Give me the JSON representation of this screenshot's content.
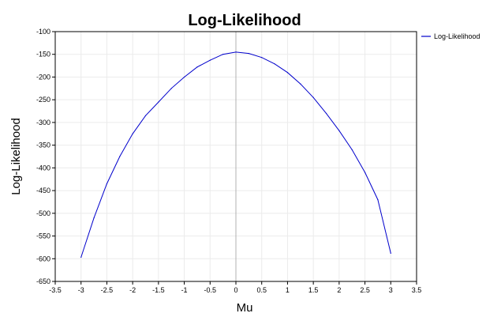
{
  "chart_data": {
    "type": "line",
    "title": "Log-Likelihood",
    "xlabel": "Mu",
    "ylabel": "Log-Likelihood",
    "xlim": [
      -3.5,
      3.5
    ],
    "ylim": [
      -650,
      -100
    ],
    "xticks": [
      "-3.5",
      "-3",
      "-2.5",
      "-2",
      "-1.5",
      "-1",
      "-0.5",
      "0",
      "0.5",
      "1",
      "1.5",
      "2",
      "2.5",
      "3",
      "3.5"
    ],
    "yticks": [
      "-100",
      "-150",
      "-200",
      "-250",
      "-300",
      "-350",
      "-400",
      "-450",
      "-500",
      "-550",
      "-600",
      "-650"
    ],
    "grid": true,
    "legend_position": "top-right",
    "vertical_marker_x": 0,
    "series": [
      {
        "name": "Log-Likelihood",
        "color": "#0000cc",
        "x": [
          -3,
          -2.75,
          -2.5,
          -2.25,
          -2,
          -1.75,
          -1.5,
          -1.25,
          -1,
          -0.75,
          -0.5,
          -0.25,
          0,
          0.25,
          0.5,
          0.75,
          1,
          1.25,
          1.5,
          1.75,
          2,
          2.25,
          2.5,
          2.75,
          3
        ],
        "y": [
          -597,
          -510,
          -435,
          -375,
          -325,
          -285,
          -255,
          -225,
          -200,
          -178,
          -163,
          -150,
          -145,
          -148,
          -157,
          -171,
          -190,
          -215,
          -245,
          -280,
          -318,
          -360,
          -410,
          -470,
          -588
        ]
      }
    ]
  }
}
